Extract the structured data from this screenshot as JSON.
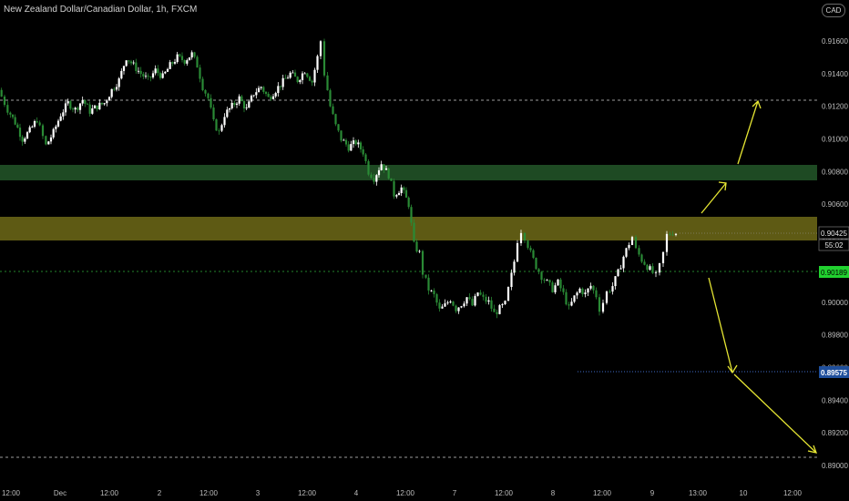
{
  "header": {
    "title": "New Zealand Dollar/Canadian Dollar, 1h, FXCM",
    "currency": "CAD"
  },
  "price_badges": {
    "last_price": "0.90425",
    "countdown": "55:02",
    "green_level": "0.90189",
    "blue_level": "0.89575"
  },
  "colors": {
    "background": "#000000",
    "bull": "#ffffff",
    "bear": "#1f6e2a",
    "resistance_zone": "#1e4a23",
    "supply_zone": "#5e5a14",
    "projection_arrow": "#e6e633",
    "green_line": "#2fae3b",
    "blue_line": "#3f6cc9"
  },
  "chart_data": {
    "type": "candlestick",
    "title": "New Zealand Dollar/Canadian Dollar, 1h, FXCM",
    "ylim": [
      0.8895,
      0.917
    ],
    "y_ticks": [
      "0.91600",
      "0.91400",
      "0.91200",
      "0.91000",
      "0.90800",
      "0.90600",
      "0.90400",
      "0.90200",
      "0.90000",
      "0.89800",
      "0.89600",
      "0.89400",
      "0.89200",
      "0.89000"
    ],
    "x_ticks": [
      "12:00",
      "Dec",
      "12:00",
      "2",
      "12:00",
      "3",
      "12:00",
      "4",
      "12:00",
      "7",
      "12:00",
      "8",
      "12:00",
      "9",
      "13:00",
      "10",
      "12:00"
    ],
    "close_path": [
      [
        0,
        0.913
      ],
      [
        10,
        0.9118
      ],
      [
        18,
        0.911
      ],
      [
        26,
        0.91
      ],
      [
        34,
        0.9105
      ],
      [
        42,
        0.9112
      ],
      [
        52,
        0.9096
      ],
      [
        60,
        0.9104
      ],
      [
        68,
        0.9115
      ],
      [
        76,
        0.9122
      ],
      [
        84,
        0.9118
      ],
      [
        92,
        0.9124
      ],
      [
        100,
        0.9117
      ],
      [
        108,
        0.912
      ],
      [
        116,
        0.9122
      ],
      [
        124,
        0.913
      ],
      [
        132,
        0.9136
      ],
      [
        140,
        0.915
      ],
      [
        148,
        0.9145
      ],
      [
        156,
        0.914
      ],
      [
        164,
        0.9136
      ],
      [
        172,
        0.9142
      ],
      [
        180,
        0.9138
      ],
      [
        188,
        0.9145
      ],
      [
        196,
        0.915
      ],
      [
        204,
        0.9148
      ],
      [
        212,
        0.9152
      ],
      [
        218,
        0.9145
      ],
      [
        224,
        0.9132
      ],
      [
        230,
        0.9125
      ],
      [
        236,
        0.911
      ],
      [
        242,
        0.9104
      ],
      [
        248,
        0.9115
      ],
      [
        256,
        0.912
      ],
      [
        264,
        0.9125
      ],
      [
        272,
        0.9118
      ],
      [
        280,
        0.9128
      ],
      [
        288,
        0.9132
      ],
      [
        296,
        0.9125
      ],
      [
        304,
        0.913
      ],
      [
        312,
        0.9135
      ],
      [
        320,
        0.914
      ],
      [
        328,
        0.9136
      ],
      [
        336,
        0.9142
      ],
      [
        344,
        0.9135
      ],
      [
        350,
        0.915
      ],
      [
        354,
        0.916
      ],
      [
        358,
        0.914
      ],
      [
        364,
        0.912
      ],
      [
        370,
        0.9108
      ],
      [
        376,
        0.91
      ],
      [
        384,
        0.9095
      ],
      [
        392,
        0.9098
      ],
      [
        400,
        0.9092
      ],
      [
        406,
        0.908
      ],
      [
        412,
        0.9076
      ],
      [
        420,
        0.9085
      ],
      [
        428,
        0.9078
      ],
      [
        434,
        0.9066
      ],
      [
        442,
        0.907
      ],
      [
        450,
        0.906
      ],
      [
        456,
        0.9035
      ],
      [
        462,
        0.903
      ],
      [
        466,
        0.9018
      ],
      [
        472,
        0.9008
      ],
      [
        478,
        0.9004
      ],
      [
        484,
        0.8995
      ],
      [
        490,
        0.8998
      ],
      [
        496,
        0.9002
      ],
      [
        502,
        0.8996
      ],
      [
        508,
        0.8999
      ],
      [
        514,
        0.9003
      ],
      [
        520,
        0.8998
      ],
      [
        526,
        0.9006
      ],
      [
        532,
        0.9002
      ],
      [
        538,
        0.9
      ],
      [
        544,
        0.8993
      ],
      [
        550,
        0.8996
      ],
      [
        556,
        0.8999
      ],
      [
        560,
        0.9008
      ],
      [
        566,
        0.9025
      ],
      [
        570,
        0.9038
      ],
      [
        574,
        0.9044
      ],
      [
        578,
        0.904
      ],
      [
        584,
        0.903
      ],
      [
        590,
        0.9022
      ],
      [
        596,
        0.9016
      ],
      [
        602,
        0.9012
      ],
      [
        608,
        0.9008
      ],
      [
        614,
        0.9012
      ],
      [
        620,
        0.9005
      ],
      [
        626,
        0.8996
      ],
      [
        632,
        0.9003
      ],
      [
        638,
        0.9008
      ],
      [
        644,
        0.9005
      ],
      [
        650,
        0.901
      ],
      [
        656,
        0.9004
      ],
      [
        660,
        0.8996
      ],
      [
        664,
        0.9
      ],
      [
        668,
        0.9006
      ],
      [
        674,
        0.901
      ],
      [
        680,
        0.9018
      ],
      [
        686,
        0.9028
      ],
      [
        692,
        0.9036
      ],
      [
        696,
        0.904
      ],
      [
        700,
        0.9032
      ],
      [
        706,
        0.9026
      ],
      [
        712,
        0.9022
      ],
      [
        718,
        0.9018
      ],
      [
        722,
        0.9016
      ],
      [
        726,
        0.9022
      ],
      [
        730,
        0.903
      ],
      [
        734,
        0.9041
      ],
      [
        740,
        0.9043
      ],
      [
        744,
        0.90425
      ]
    ]
  }
}
